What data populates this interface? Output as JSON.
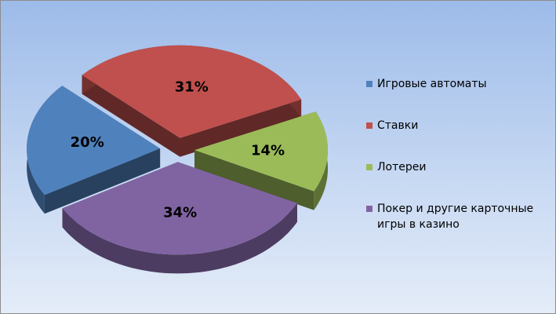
{
  "chart_data": {
    "type": "pie3d",
    "categories": [
      "Игровые автоматы",
      "Ставки",
      "Лотереи",
      "Покер и другие карточные игры в казино"
    ],
    "values": [
      20,
      31,
      14,
      34
    ],
    "value_labels": [
      "20%",
      "31%",
      "14%",
      "34%"
    ],
    "colors": [
      "#4f81bd",
      "#c0504d",
      "#9bbb59",
      "#8064a2"
    ],
    "legend": "right"
  }
}
